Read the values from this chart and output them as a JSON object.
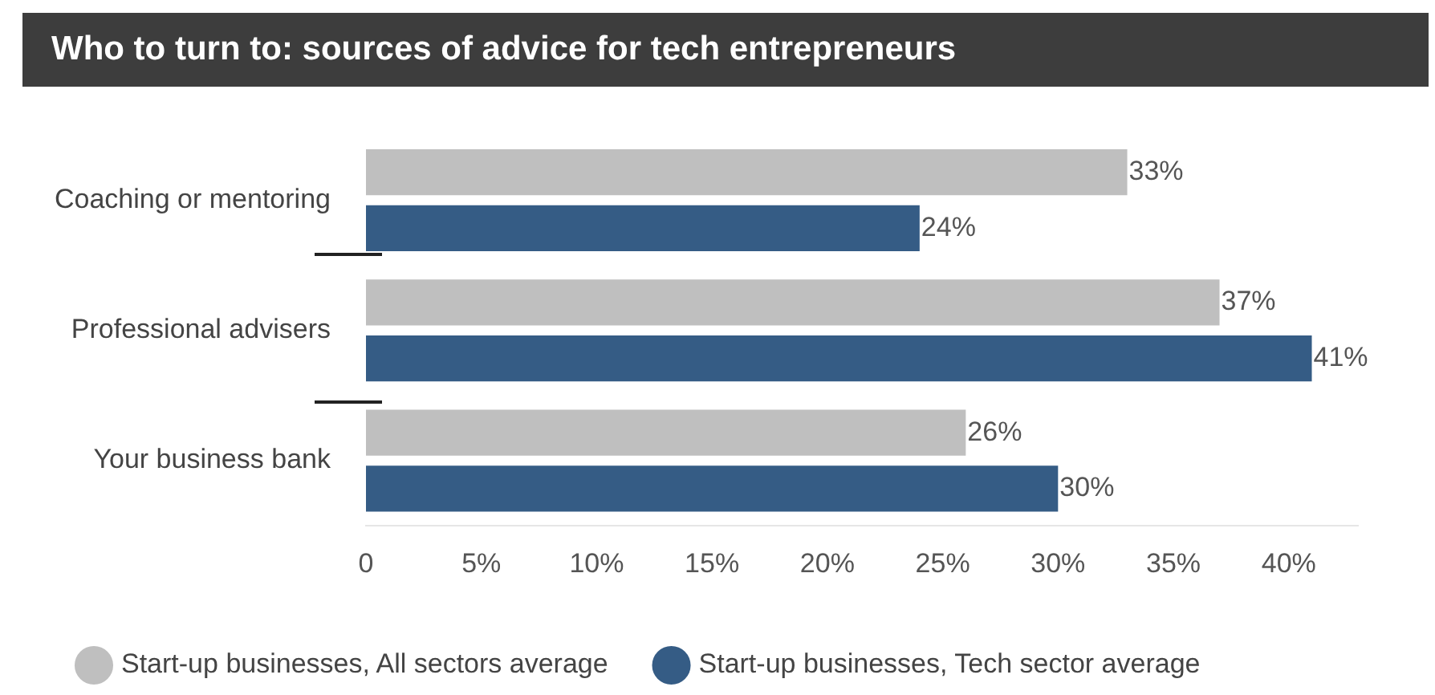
{
  "chart_data": {
    "type": "bar",
    "orientation": "horizontal",
    "title": "Who to turn to: sources of advice for tech entrepreneurs",
    "categories": [
      "Coaching or mentoring",
      "Professional advisers",
      "Your business bank"
    ],
    "series": [
      {
        "name": "Start-up businesses, All sectors average",
        "color": "#bfbfbf",
        "values": [
          33,
          37,
          26
        ],
        "value_labels": [
          "33%",
          "37%",
          "26%"
        ]
      },
      {
        "name": "Start-up businesses, Tech sector average",
        "color": "#355c85",
        "values": [
          24,
          41,
          30
        ],
        "value_labels": [
          "24%",
          "41%",
          "30%"
        ]
      }
    ],
    "xlim": [
      0,
      43
    ],
    "xticks": [
      0,
      {
        "value": 5,
        "label": "5%"
      },
      {
        "value": 10,
        "label": "10%"
      },
      {
        "value": 15,
        "label": "15%"
      },
      {
        "value": 20,
        "label": "20%"
      },
      {
        "value": 25,
        "label": "25%"
      },
      {
        "value": 30,
        "label": "30%"
      },
      {
        "value": 35,
        "label": "35%"
      },
      {
        "value": 40,
        "label": "40%"
      }
    ],
    "grid": false,
    "legend": "bottom"
  }
}
